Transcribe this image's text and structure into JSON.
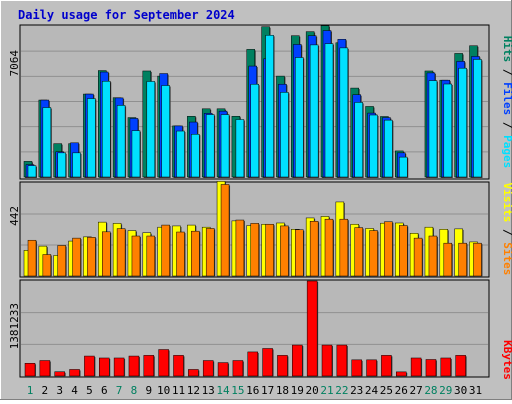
{
  "chart_data": [
    {
      "type": "bar",
      "title": "Daily usage for September 2024",
      "panel": "hits-files-pages",
      "ymax_label": "7064",
      "ylim": [
        0,
        7064
      ],
      "legend": [
        {
          "name": "Pages",
          "color": "#00e0ff"
        },
        {
          "name": "Files",
          "color": "#0040ff"
        },
        {
          "name": "Hits",
          "color": "#008060"
        }
      ],
      "categories": [
        "1",
        "2",
        "3",
        "4",
        "5",
        "6",
        "7",
        "8",
        "9",
        "10",
        "11",
        "12",
        "13",
        "14",
        "15",
        "16",
        "17",
        "18",
        "19",
        "20",
        "21",
        "22",
        "23",
        "24",
        "25",
        "26",
        "27",
        "28",
        "29",
        "30",
        "31"
      ],
      "series": [
        {
          "name": "Hits",
          "values": [
            730,
            3600,
            1560,
            1560,
            3880,
            4980,
            3710,
            2780,
            4960,
            4720,
            2390,
            2840,
            3190,
            3190,
            2840,
            5970,
            7030,
            4720,
            6610,
            6800,
            7080,
            6280,
            4160,
            3300,
            2830,
            1220,
            0,
            4960,
            4530,
            5780,
            6140
          ]
        },
        {
          "name": "Files",
          "values": [
            580,
            3600,
            1180,
            1600,
            3880,
            4910,
            3700,
            2740,
            0,
            4840,
            2390,
            2570,
            2980,
            3080,
            0,
            5190,
            5530,
            4340,
            6200,
            6610,
            6850,
            6440,
            3850,
            2990,
            2780,
            1130,
            0,
            4870,
            4530,
            5410,
            5640
          ]
        },
        {
          "name": "Pages",
          "values": [
            530,
            3250,
            1130,
            1130,
            3670,
            4480,
            3350,
            2170,
            4470,
            4280,
            2150,
            2000,
            2920,
            2920,
            2690,
            4340,
            6630,
            3960,
            5590,
            6180,
            6240,
            6040,
            3490,
            2900,
            2660,
            930,
            0,
            4510,
            4350,
            5090,
            5500
          ]
        }
      ]
    },
    {
      "type": "bar",
      "panel": "visits-sites",
      "ymax_label": "442",
      "ylim": [
        0,
        442
      ],
      "legend": [
        {
          "name": "Sites",
          "color": "#ff8000"
        },
        {
          "name": "Visits",
          "color": "#ffff00"
        }
      ],
      "categories": [
        "1",
        "2",
        "3",
        "4",
        "5",
        "6",
        "7",
        "8",
        "9",
        "10",
        "11",
        "12",
        "13",
        "14",
        "15",
        "16",
        "17",
        "18",
        "19",
        "20",
        "21",
        "22",
        "23",
        "24",
        "25",
        "26",
        "27",
        "28",
        "29",
        "30",
        "31"
      ],
      "series": [
        {
          "name": "Visits",
          "values": [
            122,
            142,
            98,
            166,
            186,
            256,
            250,
            216,
            206,
            232,
            238,
            242,
            232,
            450,
            262,
            240,
            246,
            252,
            222,
            276,
            283,
            352,
            246,
            226,
            251,
            252,
            203,
            232,
            222,
            224,
            162
          ]
        },
        {
          "name": "Sites",
          "values": [
            170,
            102,
            145,
            180,
            184,
            210,
            225,
            190,
            190,
            242,
            209,
            213,
            226,
            435,
            266,
            250,
            246,
            238,
            220,
            260,
            270,
            270,
            230,
            216,
            258,
            240,
            180,
            190,
            156,
            156,
            156
          ]
        }
      ]
    },
    {
      "type": "bar",
      "panel": "kbytes",
      "ymax_label": "1381233",
      "ylim": [
        0,
        1381233
      ],
      "legend": [
        {
          "name": "KBytes",
          "color": "#ff0000"
        }
      ],
      "categories": [
        "1",
        "2",
        "3",
        "4",
        "5",
        "6",
        "7",
        "8",
        "9",
        "10",
        "11",
        "12",
        "13",
        "14",
        "15",
        "16",
        "17",
        "18",
        "19",
        "20",
        "21",
        "22",
        "23",
        "24",
        "25",
        "26",
        "27",
        "28",
        "29",
        "30",
        "31"
      ],
      "series": [
        {
          "name": "KBytes",
          "values": [
            185000,
            225000,
            62000,
            95000,
            290000,
            262000,
            262000,
            290000,
            300000,
            385000,
            300000,
            95000,
            225000,
            195000,
            225000,
            350000,
            400000,
            300000,
            450000,
            1381233,
            450000,
            450000,
            235000,
            235000,
            300000,
            60000,
            262000,
            240000,
            262000,
            300000,
            0
          ]
        }
      ]
    }
  ],
  "x_label_colors": [
    "#008060",
    "#000000",
    "#000000",
    "#000000",
    "#000000",
    "#000000",
    "#008060",
    "#008060",
    "#000000",
    "#000000",
    "#000000",
    "#000000",
    "#000000",
    "#008060",
    "#008060",
    "#000000",
    "#000000",
    "#000000",
    "#000000",
    "#000000",
    "#008060",
    "#008060",
    "#000000",
    "#000000",
    "#000000",
    "#000000",
    "#000000",
    "#008060",
    "#008060",
    "#000000",
    "#000000"
  ]
}
